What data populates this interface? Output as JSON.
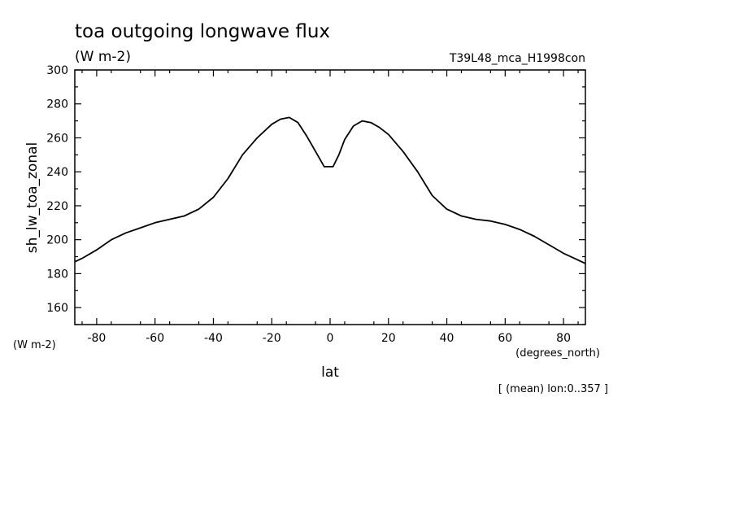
{
  "chart_data": {
    "type": "line",
    "title": "toa outgoing longwave flux",
    "subtitle_units": "(W m-2)",
    "run_label": "T39L48_mca_H1998con",
    "ylabel": "sh_lw_toa_zonal",
    "y_units_label": "(W m-2)",
    "xlabel": "lat",
    "x_units_label": "(degrees_north)",
    "footnote": "[ (mean) lon:0..357 ]",
    "xlim": [
      -87.5,
      87.5
    ],
    "ylim": [
      150,
      300
    ],
    "x_ticks": [
      -80,
      -60,
      -40,
      -20,
      0,
      20,
      40,
      60,
      80
    ],
    "x_tick_labels": [
      "-80",
      "-60",
      "-40",
      "-20",
      "0",
      "20",
      "40",
      "60",
      "80"
    ],
    "y_ticks": [
      160,
      180,
      200,
      220,
      240,
      260,
      280,
      300
    ],
    "y_tick_labels": [
      "160",
      "180",
      "200",
      "220",
      "240",
      "260",
      "280",
      "300"
    ],
    "grid": false,
    "series": [
      {
        "x": [
          -87.5,
          -85,
          -80,
          -75,
          -70,
          -65,
          -60,
          -55,
          -50,
          -45,
          -40,
          -35,
          -30,
          -27,
          -25,
          -20,
          -17,
          -14,
          -11,
          -8,
          -5,
          -2,
          1,
          3,
          5,
          8,
          11,
          14,
          17,
          20,
          25,
          30,
          35,
          40,
          45,
          50,
          55,
          60,
          65,
          70,
          75,
          80,
          85,
          87.5
        ],
        "y": [
          187,
          189,
          194,
          200,
          204,
          207,
          210,
          212,
          214,
          218,
          225,
          236,
          250,
          256,
          260,
          268,
          271,
          272,
          269,
          261,
          252,
          243,
          243,
          250,
          259,
          267,
          270,
          269,
          266,
          262,
          252,
          240,
          226,
          218,
          214,
          212,
          211,
          209,
          206,
          202,
          197,
          192,
          188,
          186
        ]
      }
    ]
  }
}
